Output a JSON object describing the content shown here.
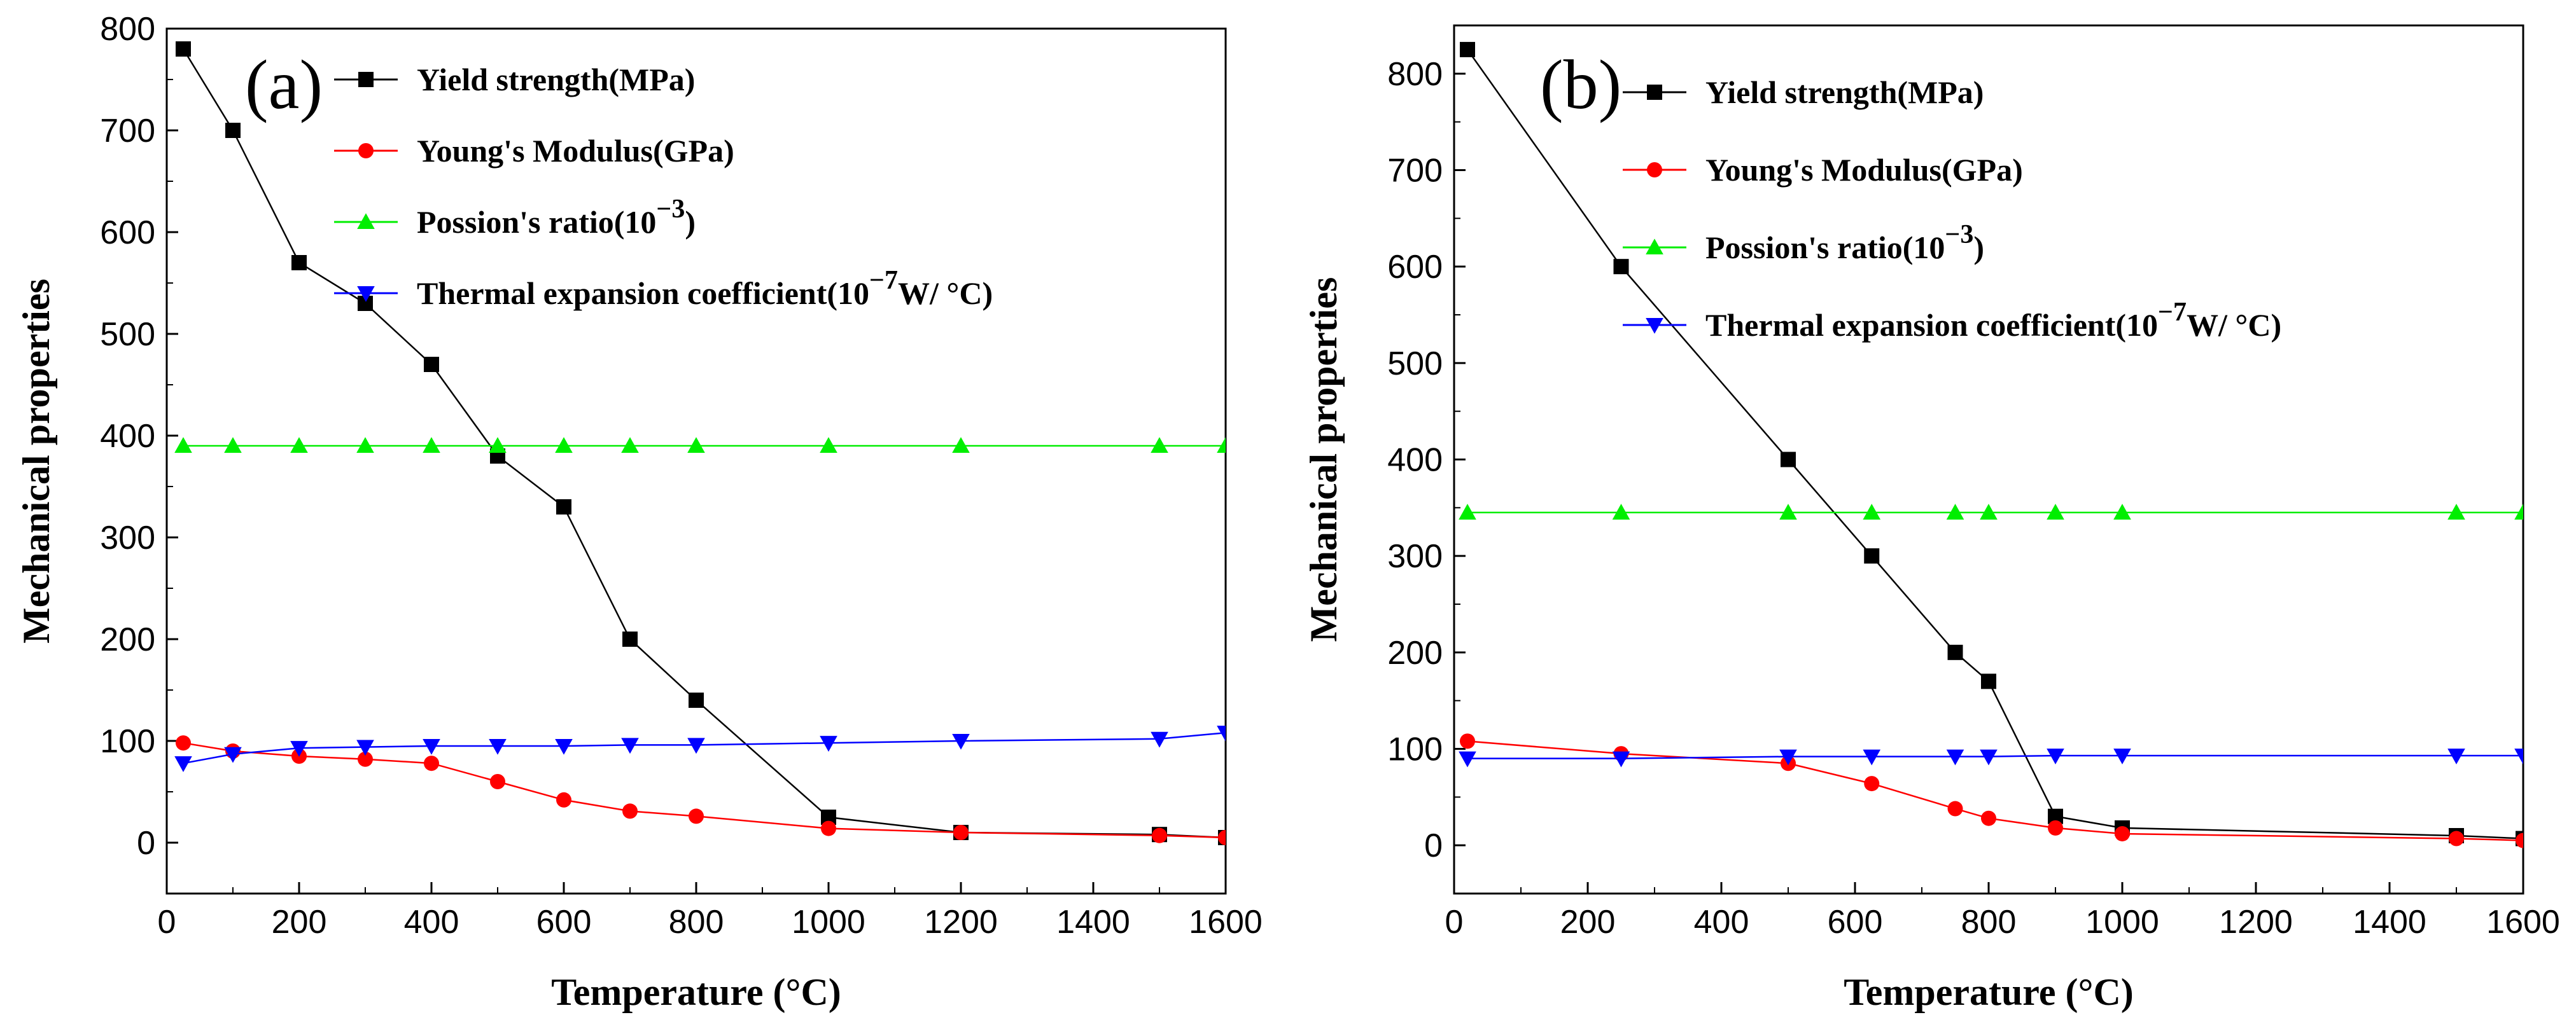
{
  "chart_data": [
    {
      "type": "line",
      "panel_label": "(a)",
      "xlabel": "Temperature (°C)",
      "ylabel": "Mechanical properties",
      "xlim": [
        0,
        1600
      ],
      "ylim": [
        -50,
        800
      ],
      "xticks": [
        0,
        200,
        400,
        600,
        800,
        1000,
        1200,
        1400,
        1600
      ],
      "yticks": [
        0,
        100,
        200,
        300,
        400,
        500,
        600,
        700,
        800
      ],
      "grid": false,
      "legend_position": "top-right",
      "series": [
        {
          "name": "Yield strength(MPa)",
          "marker": "square",
          "color": "#000000",
          "x": [
            25,
            100,
            200,
            300,
            400,
            500,
            600,
            700,
            800,
            1000,
            1200,
            1500,
            1600
          ],
          "y": [
            780,
            700,
            570,
            530,
            470,
            380,
            330,
            200,
            140,
            25,
            10,
            8,
            5
          ]
        },
        {
          "name": "Young's Modulus(GPa)",
          "marker": "circle",
          "color": "#ff0000",
          "x": [
            25,
            100,
            200,
            300,
            400,
            500,
            600,
            700,
            800,
            1000,
            1200,
            1500,
            1600
          ],
          "y": [
            98,
            90,
            85,
            82,
            78,
            60,
            42,
            31,
            26,
            14,
            10,
            7,
            5
          ]
        },
        {
          "name": "Possion's ratio(10−3)",
          "marker": "triangle-up",
          "color": "#00ee00",
          "x": [
            25,
            100,
            200,
            300,
            400,
            500,
            600,
            700,
            800,
            1000,
            1200,
            1500,
            1600
          ],
          "y": [
            390,
            390,
            390,
            390,
            390,
            390,
            390,
            390,
            390,
            390,
            390,
            390,
            390
          ]
        },
        {
          "name": "Thermal expansion coefficient(10−7W/ °C)",
          "marker": "triangle-down",
          "color": "#0000ff",
          "x": [
            25,
            100,
            200,
            300,
            400,
            500,
            600,
            700,
            800,
            1000,
            1200,
            1500,
            1600
          ],
          "y": [
            78,
            87,
            93,
            94,
            95,
            95,
            95,
            96,
            96,
            98,
            100,
            102,
            108
          ]
        }
      ]
    },
    {
      "type": "line",
      "panel_label": "(b)",
      "xlabel": "Temperature (°C)",
      "ylabel": "Mechanical properties",
      "xlim": [
        0,
        1600
      ],
      "ylim": [
        -50,
        850
      ],
      "xticks": [
        0,
        200,
        400,
        600,
        800,
        1000,
        1200,
        1400,
        1600
      ],
      "yticks": [
        0,
        100,
        200,
        300,
        400,
        500,
        600,
        700,
        800
      ],
      "grid": false,
      "legend_position": "top-right",
      "series": [
        {
          "name": "Yield strength(MPa)",
          "marker": "square",
          "color": "#000000",
          "x": [
            20,
            250,
            500,
            625,
            750,
            800,
            900,
            1000,
            1500,
            1600
          ],
          "y": [
            825,
            600,
            400,
            300,
            200,
            170,
            30,
            18,
            10,
            7
          ]
        },
        {
          "name": "Young's Modulus(GPa)",
          "marker": "circle",
          "color": "#ff0000",
          "x": [
            20,
            250,
            500,
            625,
            750,
            800,
            900,
            1000,
            1500,
            1600
          ],
          "y": [
            108,
            95,
            85,
            64,
            38,
            28,
            18,
            12,
            7,
            5
          ]
        },
        {
          "name": "Possion's ratio(10−3)",
          "marker": "triangle-up",
          "color": "#00ee00",
          "x": [
            20,
            250,
            500,
            625,
            750,
            800,
            900,
            1000,
            1500,
            1600
          ],
          "y": [
            345,
            345,
            345,
            345,
            345,
            345,
            345,
            345,
            345,
            345
          ]
        },
        {
          "name": "Thermal expansion coefficient(10−7W/ °C)",
          "marker": "triangle-down",
          "color": "#0000ff",
          "x": [
            20,
            250,
            500,
            625,
            750,
            800,
            900,
            1000,
            1500,
            1600
          ],
          "y": [
            90,
            90,
            92,
            92,
            92,
            92,
            93,
            93,
            93,
            93
          ]
        }
      ]
    }
  ]
}
